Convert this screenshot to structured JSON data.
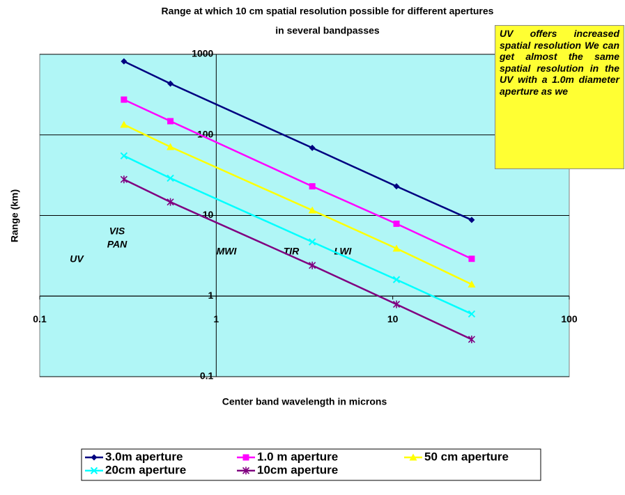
{
  "chart_data": {
    "type": "line",
    "title": [
      "Range at which 10 cm spatial resolution possible for different apertures",
      "in several bandpasses"
    ],
    "x_label": "Center band wavelength in microns",
    "y_label": "Range (km)",
    "x": [
      0.3,
      0.55,
      3.5,
      10.5,
      28
    ],
    "log_x": true,
    "log_y": true,
    "xlim": [
      0.1,
      100
    ],
    "ylim": [
      0.1,
      1000
    ],
    "xticks": [
      0.1,
      1,
      10,
      100
    ],
    "yticks": [
      0.1,
      1,
      10,
      100,
      1000
    ],
    "grid": true,
    "legend": "bottom",
    "series": [
      {
        "name": "3.0m aperture",
        "color": "#000080",
        "marker": "diamond",
        "values": [
          818,
          433,
          69,
          23,
          8.8
        ]
      },
      {
        "name": "1.0 m aperture",
        "color": "#ff00ff",
        "marker": "square",
        "values": [
          274,
          148,
          23,
          7.9,
          2.9
        ]
      },
      {
        "name": "50 cm aperture",
        "color": "#ffff00",
        "marker": "triangle",
        "values": [
          134,
          71,
          11.6,
          3.9,
          1.4
        ]
      },
      {
        "name": "20cm aperture",
        "color": "#00ffff",
        "marker": "x",
        "values": [
          55,
          29,
          4.7,
          1.6,
          0.6
        ]
      },
      {
        "name": "10cm aperture",
        "color": "#800080",
        "marker": "star",
        "values": [
          28,
          14.7,
          2.4,
          0.79,
          0.29
        ]
      }
    ],
    "annotations": [
      "UV",
      "VIS",
      "PAN",
      "MWI",
      "TIR",
      "LWI"
    ],
    "note": "UV offers increased spatial resolution We can get almost the same spatial resolution in the UV with a 1.0m diameter aperture as we"
  }
}
